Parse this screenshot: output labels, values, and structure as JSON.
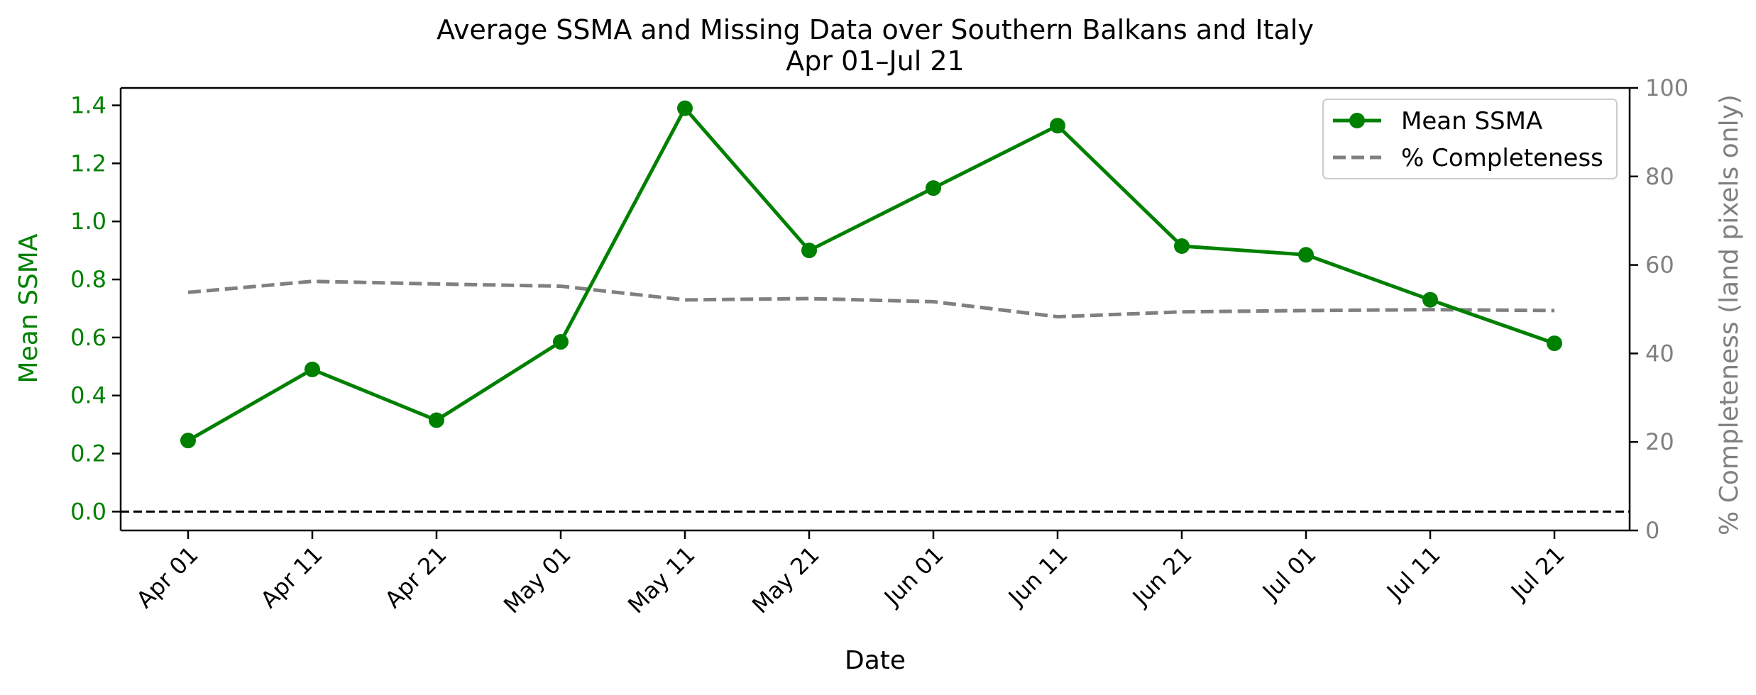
{
  "chart_data": {
    "type": "line",
    "title": "Average SSMA and Missing Data over Southern Balkans and Italy",
    "subtitle": "Apr 01–Jul 21",
    "xlabel": "Date",
    "ylabel_left": "Mean SSMA",
    "ylabel_right": "% Completeness (land pixels only)",
    "categories": [
      "Apr 01",
      "Apr 11",
      "Apr 21",
      "May 01",
      "May 11",
      "May 21",
      "Jun 01",
      "Jun 11",
      "Jun 21",
      "Jul 01",
      "Jul 11",
      "Jul 21"
    ],
    "series": [
      {
        "name": "Mean SSMA",
        "axis": "left",
        "style": "solid-markers",
        "color": "#008000",
        "values": [
          0.245,
          0.49,
          0.315,
          0.585,
          1.39,
          0.9,
          1.115,
          1.33,
          0.915,
          0.885,
          0.73,
          0.58
        ]
      },
      {
        "name": "% Completeness",
        "axis": "right",
        "style": "dashed",
        "color": "#808080",
        "values": [
          53.8,
          56.3,
          55.7,
          55.2,
          52.1,
          52.4,
          51.7,
          48.3,
          49.4,
          49.7,
          49.9,
          49.7
        ]
      }
    ],
    "ylim_left": [
      -0.065,
      1.46
    ],
    "ylim_right": [
      0,
      100
    ],
    "yticks_left": [
      "0.0",
      "0.2",
      "0.4",
      "0.6",
      "0.8",
      "1.0",
      "1.2",
      "1.4"
    ],
    "yticks_right": [
      "0",
      "20",
      "40",
      "60",
      "80",
      "100"
    ],
    "reference_line": {
      "y": 0.0,
      "style": "dashed",
      "color": "#000000"
    },
    "legend_position": "top-right",
    "grid": false,
    "colors": {
      "left_axis": "#008000",
      "right_axis": "#808080"
    }
  }
}
